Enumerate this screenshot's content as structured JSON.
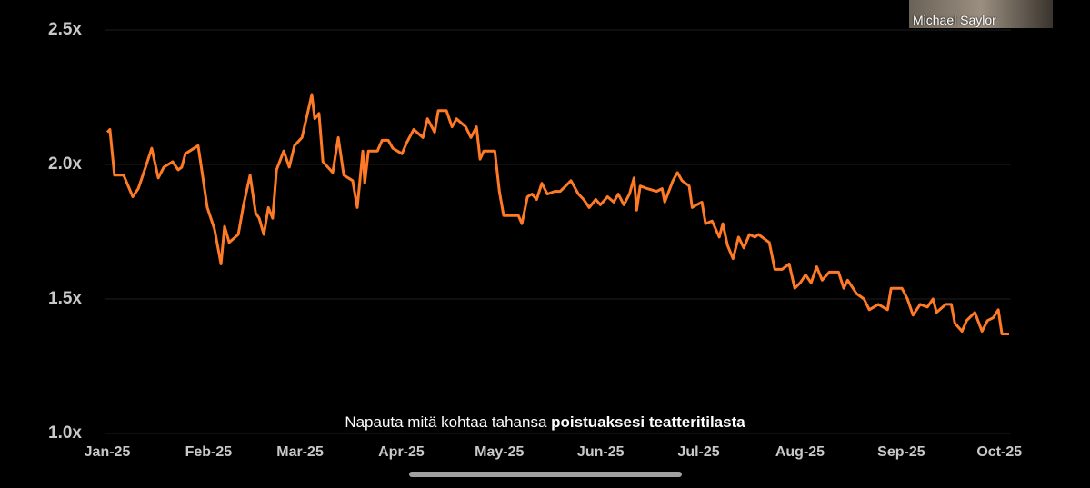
{
  "chart_data": {
    "type": "line",
    "x": [
      0,
      0.8,
      2.2,
      5.0,
      7.8,
      9.5,
      11.7,
      13.6,
      15.6,
      17.3,
      20.0,
      21.7,
      22.8,
      23.9,
      27.8,
      28.9,
      30.6,
      32.8,
      34.8,
      35.9,
      37.3,
      40.1,
      41.7,
      43.7,
      45.4,
      46.5,
      47.9,
      49.3,
      50.6,
      51.8,
      54.0,
      55.7,
      57.3,
      59.6,
      62.6,
      63.5,
      64.8,
      66.0,
      69.0,
      70.7,
      72.4,
      75.1,
      76.5,
      78.2,
      78.8,
      79.9,
      82.7,
      84.1,
      86.0,
      87.4,
      90.2,
      91.6,
      93.8,
      96.6,
      98.0,
      100.2,
      101.3,
      103.8,
      105.5,
      106.9,
      109.7,
      111.3,
      113.0,
      114.1,
      115.2,
      118.6,
      120.0,
      121.3,
      125.8,
      126.9,
      128.6,
      130.0,
      131.4,
      133.0,
      134.7,
      136.9,
      138.6,
      140.3,
      141.9,
      144.2,
      145.8,
      147.5,
      149.5,
      150.9,
      153.1,
      155.0,
      156.4,
      158.1,
      159.8,
      161.2,
      162.0,
      163.1,
      165.3,
      168.1,
      169.8,
      170.6,
      173.1,
      174.5,
      175.9,
      178.1,
      179.0,
      180.4,
      182.0,
      183.1,
      185.1,
      187.3,
      188.4,
      189.8,
      191.5,
      193.2,
      194.8,
      196.5,
      198.2,
      199.3,
      202.6,
      204.3,
      206.5,
      208.7,
      210.4,
      212.1,
      213.7,
      215.4,
      217.1,
      218.8,
      221.0,
      223.8,
      225.4,
      226.6,
      229.3,
      231.6,
      233.2,
      236.0,
      238.8,
      239.9,
      243.2,
      244.9,
      246.6,
      248.8,
      251.0,
      252.7,
      253.8,
      256.6,
      258.3,
      259.4,
      261.6,
      263.0,
      265.5,
      267.7,
      269.4,
      271.1,
      272.7,
      273.8,
      276.0
    ],
    "series": [
      {
        "color": "#ff7a26",
        "values": [
          2.12,
          2.13,
          1.96,
          1.96,
          1.88,
          1.91,
          1.99,
          2.06,
          1.95,
          1.99,
          2.01,
          1.98,
          1.99,
          2.04,
          2.07,
          1.98,
          1.84,
          1.76,
          1.63,
          1.77,
          1.71,
          1.74,
          1.85,
          1.96,
          1.82,
          1.8,
          1.74,
          1.84,
          1.8,
          1.98,
          2.05,
          1.99,
          2.07,
          2.1,
          2.26,
          2.17,
          2.19,
          2.01,
          1.97,
          2.1,
          1.96,
          1.94,
          1.84,
          2.05,
          1.93,
          2.05,
          2.05,
          2.09,
          2.09,
          2.06,
          2.04,
          2.08,
          2.13,
          2.1,
          2.17,
          2.12,
          2.2,
          2.2,
          2.14,
          2.17,
          2.14,
          2.1,
          2.14,
          2.02,
          2.05,
          2.05,
          1.9,
          1.81,
          1.81,
          1.78,
          1.88,
          1.89,
          1.87,
          1.93,
          1.89,
          1.9,
          1.9,
          1.92,
          1.94,
          1.89,
          1.87,
          1.84,
          1.87,
          1.85,
          1.88,
          1.86,
          1.89,
          1.85,
          1.89,
          1.95,
          1.83,
          1.92,
          1.91,
          1.9,
          1.91,
          1.86,
          1.94,
          1.97,
          1.94,
          1.92,
          1.84,
          1.85,
          1.86,
          1.78,
          1.79,
          1.73,
          1.78,
          1.7,
          1.65,
          1.73,
          1.69,
          1.74,
          1.73,
          1.74,
          1.71,
          1.61,
          1.61,
          1.63,
          1.54,
          1.56,
          1.59,
          1.56,
          1.62,
          1.57,
          1.6,
          1.6,
          1.54,
          1.57,
          1.52,
          1.5,
          1.46,
          1.48,
          1.46,
          1.54,
          1.54,
          1.5,
          1.44,
          1.48,
          1.47,
          1.5,
          1.45,
          1.48,
          1.48,
          1.41,
          1.38,
          1.42,
          1.45,
          1.38,
          1.42,
          1.43,
          1.46,
          1.37,
          1.37
        ]
      }
    ],
    "xlim": [
      0,
      276
    ],
    "xticks": [
      {
        "value": 0,
        "label": "Jan-25"
      },
      {
        "value": 31,
        "label": "Feb-25"
      },
      {
        "value": 59,
        "label": "Mar-25"
      },
      {
        "value": 90,
        "label": "Apr-25"
      },
      {
        "value": 120,
        "label": "May-25"
      },
      {
        "value": 151,
        "label": "Jun-25"
      },
      {
        "value": 181,
        "label": "Jul-25"
      },
      {
        "value": 212,
        "label": "Aug-25"
      },
      {
        "value": 243,
        "label": "Sep-25"
      },
      {
        "value": 273,
        "label": "Oct-25"
      }
    ],
    "ylim": [
      1.0,
      2.5
    ],
    "yticks": [
      {
        "value": 1.0,
        "label": "1.0x"
      },
      {
        "value": 1.5,
        "label": "1.5x"
      },
      {
        "value": 2.0,
        "label": "2.0x"
      },
      {
        "value": 2.5,
        "label": "2.5x"
      }
    ],
    "grid": true
  },
  "webcam": {
    "name": "Michael Saylor"
  },
  "caption": {
    "text": "Napauta mitä kohtaa tahansa",
    "bold": "poistuaksesi teatteritilasta"
  }
}
